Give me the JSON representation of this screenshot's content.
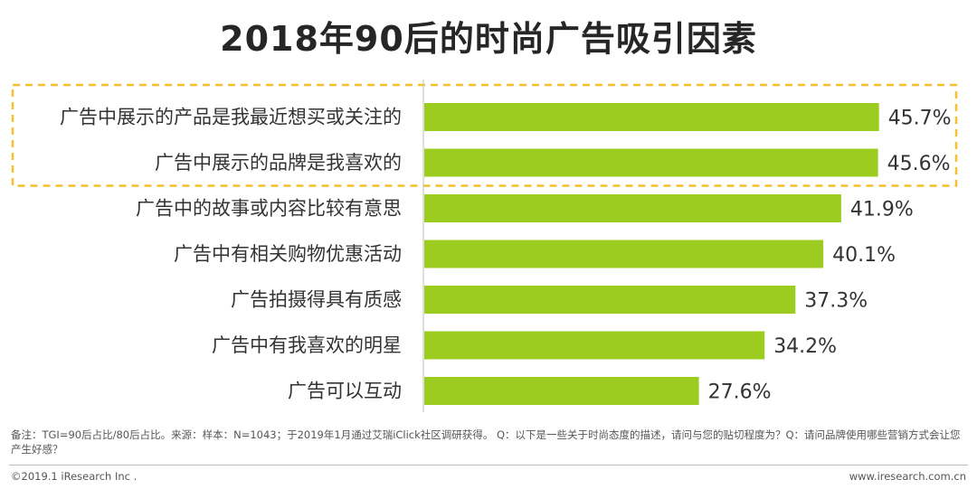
{
  "title": "2018年90后的时尚广告吸引因素",
  "chart_data": {
    "type": "bar",
    "orientation": "horizontal",
    "title": "2018年90后的时尚广告吸引因素",
    "categories": [
      "广告中展示的产品是我最近想买或关注的",
      "广告中展示的品牌是我喜欢的",
      "广告中的故事或内容比较有意思",
      "广告中有相关购物优惠活动",
      "广告拍摄得具有质感",
      "广告中有我喜欢的明星",
      "广告可以互动"
    ],
    "values": [
      45.7,
      45.6,
      41.9,
      40.1,
      37.3,
      34.2,
      27.6
    ],
    "value_labels": [
      "45.7%",
      "45.6%",
      "41.9%",
      "40.1%",
      "37.3%",
      "34.2%",
      "27.6%"
    ],
    "unit": "%",
    "xlim": [
      0,
      50
    ],
    "grid": false,
    "highlighted_categories": [
      0,
      1
    ],
    "colors": {
      "bar": "#9ccc1f",
      "highlight_box": "#f5c02b",
      "axis": "#bfbfbf",
      "text": "#333333"
    }
  },
  "footnote": "备注：TGI=90后占比/80后占比。来源：样本：N=1043；于2019年1月通过艾瑞iClick社区调研获得。 Q：以下是一些关于时尚态度的描述，请问与您的贴切程度为？Q：请问品牌使用哪些营销方式会让您产生好感？",
  "footer": {
    "copyright": "©2019.1 iResearch Inc .",
    "website": "www.iresearch.com.cn"
  }
}
